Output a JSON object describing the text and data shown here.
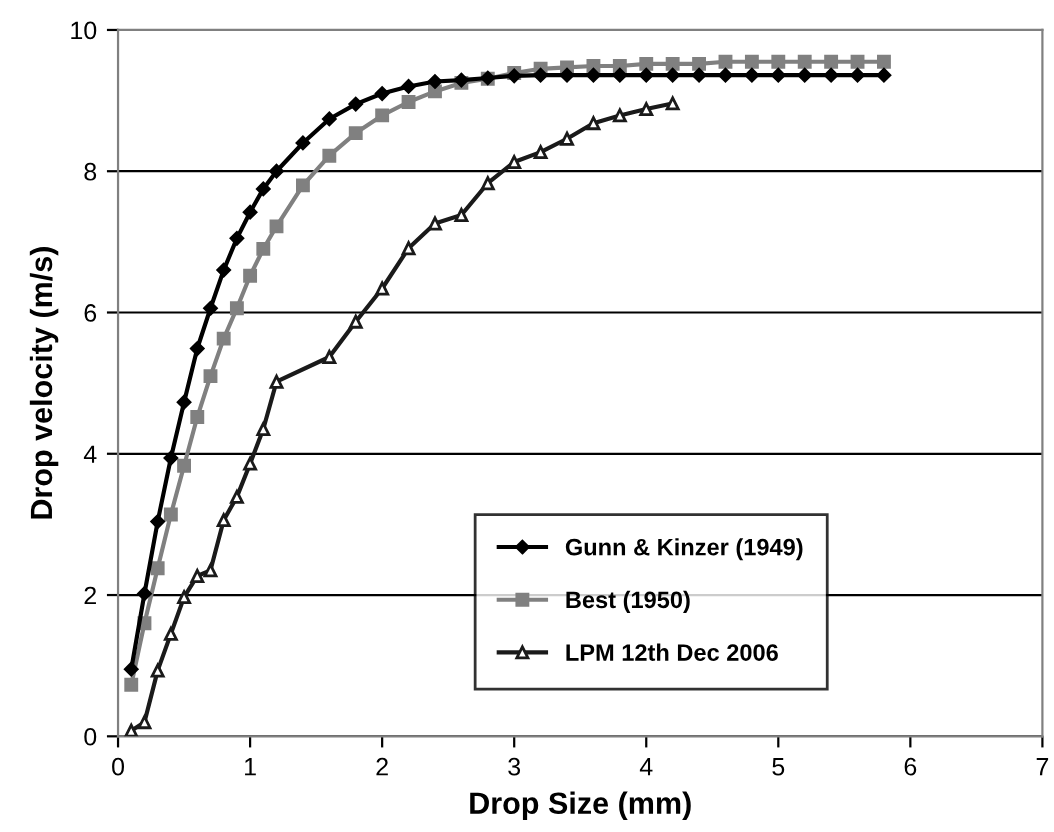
{
  "chart_data": {
    "type": "line",
    "xlabel": "Drop Size (mm)",
    "ylabel": "Drop velocity (m/s)",
    "xlim": [
      0,
      7
    ],
    "xticks": [
      0,
      1,
      2,
      3,
      4,
      5,
      6,
      7
    ],
    "ylim": [
      0,
      10
    ],
    "yticks": [
      0,
      2,
      4,
      6,
      8,
      10
    ],
    "grid": "y",
    "legend": "bottom right",
    "line_style": "solid",
    "series": [
      {
        "name": "Gunn & Kinzer (1949)",
        "color": "#000000",
        "marker": "diamond",
        "x": [
          0.1,
          0.2,
          0.3,
          0.4,
          0.5,
          0.6,
          0.7,
          0.8,
          0.9,
          1.0,
          1.1,
          1.2,
          1.4,
          1.6,
          1.8,
          2.0,
          2.2,
          2.4,
          2.6,
          2.8,
          3.0,
          3.2,
          3.4,
          3.6,
          3.8,
          4.0,
          4.2,
          4.4,
          4.6,
          4.8,
          5.0,
          5.2,
          5.4,
          5.6,
          5.8
        ],
        "values": [
          0.95,
          2.02,
          3.04,
          3.94,
          4.73,
          5.49,
          6.06,
          6.6,
          7.05,
          7.42,
          7.75,
          8.0,
          8.4,
          8.74,
          8.95,
          9.1,
          9.2,
          9.27,
          9.29,
          9.32,
          9.35,
          9.36,
          9.36,
          9.36,
          9.36,
          9.36,
          9.36,
          9.36,
          9.36,
          9.36,
          9.36,
          9.36,
          9.36,
          9.36,
          9.36
        ]
      },
      {
        "name": "Best (1950)",
        "color": "#808080",
        "marker": "square",
        "x": [
          0.1,
          0.2,
          0.3,
          0.4,
          0.5,
          0.6,
          0.7,
          0.8,
          0.9,
          1.0,
          1.1,
          1.2,
          1.4,
          1.6,
          1.8,
          2.0,
          2.2,
          2.4,
          2.6,
          2.8,
          3.0,
          3.2,
          3.4,
          3.6,
          3.8,
          4.0,
          4.2,
          4.4,
          4.6,
          4.8,
          5.0,
          5.2,
          5.4,
          5.6,
          5.8
        ],
        "values": [
          0.73,
          1.6,
          2.38,
          3.14,
          3.83,
          4.52,
          5.1,
          5.63,
          6.06,
          6.52,
          6.9,
          7.22,
          7.8,
          8.22,
          8.54,
          8.79,
          8.98,
          9.13,
          9.25,
          9.31,
          9.39,
          9.45,
          9.47,
          9.49,
          9.49,
          9.52,
          9.52,
          9.52,
          9.55,
          9.55,
          9.55,
          9.55,
          9.55,
          9.55,
          9.55
        ]
      },
      {
        "name": "LPM 12th Dec 2006",
        "color": "#1a1a1a",
        "marker": "triangle",
        "x": [
          0.1,
          0.2,
          0.3,
          0.4,
          0.5,
          0.6,
          0.7,
          0.8,
          0.9,
          1.0,
          1.1,
          1.2,
          1.6,
          1.8,
          2.0,
          2.2,
          2.4,
          2.6,
          2.8,
          3.0,
          3.2,
          3.4,
          3.6,
          3.8,
          4.0,
          4.2
        ],
        "values": [
          0.08,
          0.2,
          0.93,
          1.45,
          1.97,
          2.27,
          2.35,
          3.06,
          3.39,
          3.86,
          4.35,
          5.02,
          5.37,
          5.87,
          6.34,
          6.91,
          7.26,
          7.38,
          7.83,
          8.13,
          8.27,
          8.46,
          8.68,
          8.79,
          8.88,
          8.96
        ]
      }
    ]
  }
}
